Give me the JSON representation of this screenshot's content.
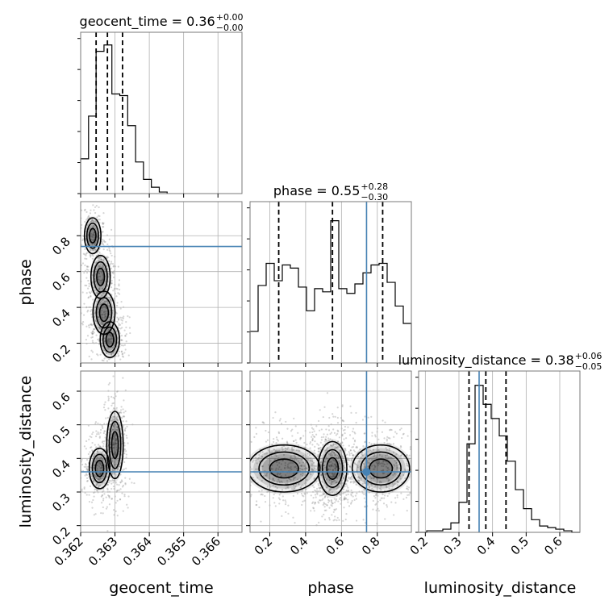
{
  "chart_data": {
    "type": "corner",
    "parameters": [
      "geocent_time",
      "phase",
      "luminosity_distance"
    ],
    "titles": [
      {
        "param": "geocent_time",
        "text": "geocent_time = 0.36",
        "sup": "+0.00",
        "sub": "−0.00"
      },
      {
        "param": "phase",
        "text": "phase = 0.55",
        "sup": "+0.28",
        "sub": "−0.30"
      },
      {
        "param": "luminosity_distance",
        "text": "luminosity_distance = 0.38",
        "sup": "+0.06",
        "sub": "−0.05"
      }
    ],
    "truths": {
      "geocent_time": null,
      "phase": 0.74,
      "luminosity_distance": 0.36
    },
    "ranges": {
      "geocent_time": [
        0.362,
        0.3667
      ],
      "phase": [
        0.09,
        0.99
      ],
      "luminosity_distance": [
        0.18,
        0.66
      ]
    },
    "ticks": {
      "geocent_time": [
        "0.362",
        "0.363",
        "0.364",
        "0.365",
        "0.366"
      ],
      "phase_x": [
        "0.2",
        "0.4",
        "0.6",
        "0.8"
      ],
      "phase_y": [
        "0.2",
        "0.4",
        "0.6",
        "0.8"
      ],
      "luminosity_distance_y": [
        "0.2",
        "0.3",
        "0.4",
        "0.5",
        "0.6"
      ],
      "luminosity_distance_x": [
        "0.2",
        "0.3",
        "0.4",
        "0.5",
        "0.6"
      ]
    },
    "tick_values": {
      "geocent_time": [
        0.362,
        0.363,
        0.364,
        0.365,
        0.366
      ],
      "phase": [
        0.2,
        0.4,
        0.6,
        0.8
      ],
      "luminosity_distance": [
        0.2,
        0.3,
        0.4,
        0.5,
        0.6
      ]
    },
    "quantiles": {
      "geocent_time": [
        0.36245,
        0.36278,
        0.36322
      ],
      "phase": [
        0.25,
        0.55,
        0.83
      ],
      "luminosity_distance": [
        0.33,
        0.38,
        0.44
      ]
    },
    "histograms": {
      "geocent_time": {
        "edges": [
          0.362,
          0.36223,
          0.36245,
          0.36268,
          0.36291,
          0.36314,
          0.36337,
          0.3636,
          0.36383,
          0.36406,
          0.36429,
          0.36452
        ],
        "counts": [
          0.22,
          0.49,
          0.9,
          0.94,
          0.63,
          0.62,
          0.43,
          0.2,
          0.09,
          0.04,
          0.01
        ]
      },
      "phase": {
        "edges": [
          0.09,
          0.135,
          0.18,
          0.225,
          0.27,
          0.315,
          0.36,
          0.405,
          0.45,
          0.495,
          0.54,
          0.585,
          0.63,
          0.675,
          0.72,
          0.765,
          0.81,
          0.855,
          0.9,
          0.945,
          0.99
        ],
        "counts": [
          0.2,
          0.49,
          0.63,
          0.52,
          0.62,
          0.6,
          0.48,
          0.33,
          0.47,
          0.45,
          0.9,
          0.47,
          0.44,
          0.5,
          0.57,
          0.62,
          0.63,
          0.51,
          0.36,
          0.25
        ]
      },
      "luminosity_distance": {
        "edges": [
          0.18,
          0.204,
          0.228,
          0.252,
          0.276,
          0.3,
          0.324,
          0.348,
          0.372,
          0.396,
          0.42,
          0.444,
          0.468,
          0.492,
          0.516,
          0.54,
          0.564,
          0.588,
          0.612,
          0.636,
          0.66
        ],
        "counts": [
          0.0,
          0.01,
          0.01,
          0.02,
          0.06,
          0.19,
          0.56,
          0.93,
          0.81,
          0.72,
          0.61,
          0.45,
          0.27,
          0.15,
          0.08,
          0.04,
          0.03,
          0.02,
          0.01,
          0.0
        ]
      }
    },
    "density_blobs": {
      "phase_vs_geocent_time": [
        {
          "x": 0.36235,
          "y": 0.8,
          "sx": 0.00012,
          "sy": 0.05
        },
        {
          "x": 0.36258,
          "y": 0.57,
          "sx": 0.00014,
          "sy": 0.06
        },
        {
          "x": 0.36268,
          "y": 0.37,
          "sx": 0.00016,
          "sy": 0.06
        },
        {
          "x": 0.36285,
          "y": 0.22,
          "sx": 0.00014,
          "sy": 0.05
        }
      ],
      "ld_vs_geocent_time": [
        {
          "x": 0.36255,
          "y": 0.37,
          "sx": 0.00015,
          "sy": 0.03
        },
        {
          "x": 0.363,
          "y": 0.44,
          "sx": 0.00012,
          "sy": 0.05
        }
      ],
      "ld_vs_phase": [
        {
          "x": 0.28,
          "y": 0.37,
          "sx": 0.1,
          "sy": 0.035
        },
        {
          "x": 0.55,
          "y": 0.37,
          "sx": 0.04,
          "sy": 0.04
        },
        {
          "x": 0.82,
          "y": 0.37,
          "sx": 0.08,
          "sy": 0.035
        }
      ]
    }
  }
}
